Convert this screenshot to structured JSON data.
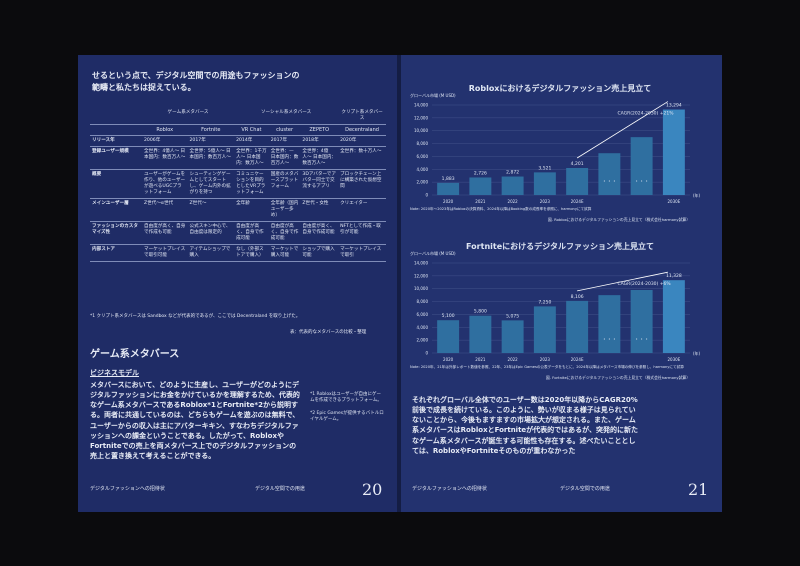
{
  "left_page": {
    "intro": "せるという点で、デジタル空間での用途もファッションの範疇と私たちは捉えている。",
    "table": {
      "groups": [
        "ゲーム系メタバース",
        "ソーシャル系メタバース",
        "クリプト系メタバース"
      ],
      "columns": [
        "Roblox",
        "Fortnite",
        "VR Chat",
        "cluster",
        "ZEPETO",
        "Decentraland"
      ],
      "rows": [
        [
          "リリース年",
          "2006年",
          "2017年",
          "2014年",
          "2017年",
          "2018年",
          "2020年"
        ],
        [
          "登録ユーザー規模",
          "全世界：4億人〜 日本国内：数百万人〜",
          "全世界：5億人〜 日本国内：数百万人〜",
          "全世界：1千万人〜 日本国内：数万人〜",
          "全世界：— 日本国内：数百万人〜",
          "全世界：4億人〜 日本国内：数百万人〜",
          "全世界：数十万人〜"
        ],
        [
          "概要",
          "ユーザーがゲームを作り、他のユーザーが遊べるUGCプラットフォーム",
          "シューティングゲームとしてスタートし、ゲーム内外の拡がりを持つ",
          "コミュニケーションを目的としたVRプラットフォーム",
          "国産のメタバースプラットフォーム",
          "3Dアバターでアバター同士で交流するアプリ",
          "ブロックチェーン上に構築された仮想空間"
        ],
        [
          "メインユーザー層",
          "Z世代〜α世代",
          "Z世代〜",
          "全年齢",
          "全年齢（国内ユーザー多め）",
          "Z世代・女性",
          "クリエイター"
        ],
        [
          "ファッションのカスタマイズ性",
          "自由度が高く、自身で作成も可能",
          "公式スキン中心で、自由度は限定的",
          "自由度が高く、自身で作成可能",
          "自由度が高く、自身で作成可能",
          "自由度が高く、自身で作成可能",
          "NFTとして作成・取引が可能"
        ],
        [
          "内部ストア",
          "マーケットプレイスで取引可能",
          "アイテムショップで購入",
          "なし（外部ストアで購入）",
          "マーケットで購入可能",
          "ショップで購入可能",
          "マーケットプレイスで取引"
        ]
      ],
      "footnote": "*1 クリプト系メタバースは Sandbox などが代表的であるが、ここでは Decentraland を取り上げた。",
      "source": "表：代表的なメタバースの比較・整理"
    },
    "section_title": "ゲーム系メタバース",
    "subsection": "ビジネスモデル",
    "body": "メタバースにおいて、どのように生産し、ユーザーがどのようにデジタルファッションにお金をかけているかを理解するため、代表的なゲーム系メタバースであるRoblox*1とFortnite*2から説明する。両者に共通しているのは、どちらもゲームを遊ぶのは無料で、ユーザーからの収入は主にアバターキキン、すなわちデジタルファッションへの課金ということである。したがって、RobloxやFortniteでの売上を両メタバース上でのデジタルファッションの売上と置き換えて考えることができる。",
    "side_notes": [
      "*1 Robloxはユーザーが自由にゲームを作成できるプラットフォーム。",
      "*2 Epic Gamesが提供するバトルロイヤルゲーム。"
    ],
    "footer_left": "デジタルファッションへの招待状",
    "footer_center": "デジタル空間での用途",
    "page_number": "20"
  },
  "right_page": {
    "charts": [
      {
        "title": "Robloxにおけるデジタルファッション売上見立て",
        "axis_label": "グローバル市場 (M USD)",
        "unit_label": "(年)",
        "categories": [
          "2020",
          "2021",
          "2022",
          "2023",
          "2024E",
          null,
          null,
          "2030E"
        ],
        "values": [
          1883,
          2726,
          2872,
          3521,
          4201,
          6500,
          9000,
          13294
        ],
        "value_labels": [
          "1,883",
          "2,726",
          "2,872",
          "3,521",
          "4,201",
          null,
          null,
          "13,294"
        ],
        "ylim": [
          0,
          14000
        ],
        "yticks": [
          0,
          {
            "value": 2000,
            "label": "2,000"
          },
          {
            "value": 4000,
            "label": "4,000"
          },
          {
            "value": 6000,
            "label": "6,000"
          },
          {
            "value": 8000,
            "label": "8,000"
          },
          {
            "value": 10000,
            "label": "10,000"
          },
          {
            "value": 12000,
            "label": "12,000"
          },
          {
            "value": 14000,
            "label": "14,000"
          }
        ],
        "color": "#2f6fa0",
        "ellipsis": "・・・",
        "annotation": "CAGR(2024-2030) +21%",
        "note": "Note: 2020年〜2023年はRobloxの決算資料、2024年以降はBooking数の成長率を参照に、harmonyにて試算",
        "source": "図. Robloxにおけるデジタルファッションの売上見立て（株式会社harmony試算）"
      },
      {
        "title": "Fortniteにおけるデジタルファッション売上見立て",
        "axis_label": "グローバル市場 (M USD)",
        "unit_label": "(年)",
        "categories": [
          "2020",
          "2021",
          "2022",
          "2023",
          "2024E",
          null,
          null,
          "2030E"
        ],
        "values": [
          5100,
          5800,
          5075,
          7250,
          8106,
          9000,
          9800,
          11328
        ],
        "value_labels": [
          "5,100",
          "5,800",
          "5,075",
          "7,250",
          "8,106",
          null,
          null,
          "11,328"
        ],
        "ylim": [
          0,
          14000
        ],
        "yticks": [
          0,
          {
            "value": 2000,
            "label": "2,000"
          },
          {
            "value": 4000,
            "label": "4,000"
          },
          {
            "value": 6000,
            "label": "6,000"
          },
          {
            "value": 8000,
            "label": "8,000"
          },
          {
            "value": 10000,
            "label": "10,000"
          },
          {
            "value": 12000,
            "label": "12,000"
          },
          {
            "value": 14000,
            "label": "14,000"
          }
        ],
        "color": "#2f6fa0",
        "ellipsis": "・・・",
        "annotation": "CAGR(2024-2030) +6%",
        "note": "Note: 2020年、21年は外部レポート数値を参照、22年、23年はEpic Gamesの公表データをもとに、2024年以降はメタバース市場の伸びを参照し、harmonyにて試算",
        "source": "図. Fortniteにおけるデジタルファッションの売上見立て（株式会社harmony試算）"
      }
    ],
    "body": "それぞれグローバル全体でのユーザー数は2020年以降からCAGR20%前後で成長を続けている。このように、勢いが収まる様子は見られていないことから、今後もますますの市場拡大が想定される。また、ゲーム系メタバースはRobloxとFortniteが代表的ではあるが、突発的に新たなゲーム系メタバースが誕生する可能性も存在する。述べたいこととしては、RobloxやFortniteそのものが重わなかった",
    "footer_left": "デジタルファッションへの招待状",
    "footer_center": "デジタル空間での用途",
    "page_number": "21"
  }
}
